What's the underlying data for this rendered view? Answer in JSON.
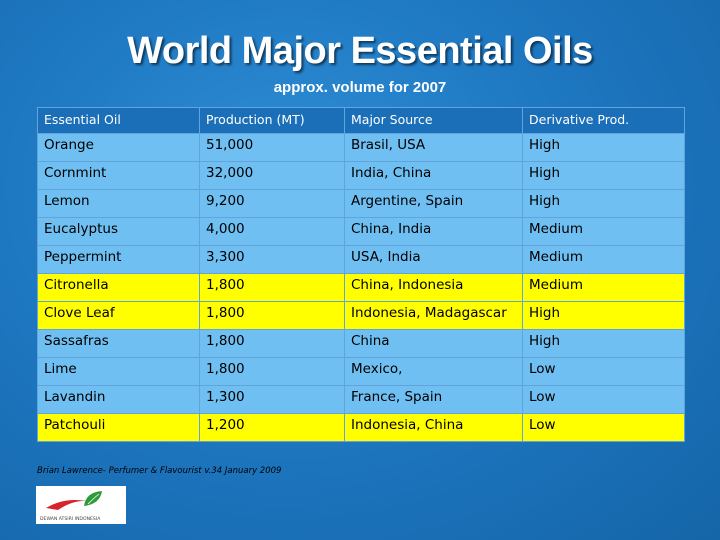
{
  "title": "World Major Essential Oils",
  "subtitle": "approx. volume for 2007",
  "table": {
    "headers": [
      "Essential Oil",
      "Production (MT)",
      "Major Source",
      "Derivative Prod."
    ],
    "rows": [
      {
        "oil": "Orange",
        "production": "51,000",
        "source": "Brasil, USA",
        "derivative": "High",
        "highlight": "blue"
      },
      {
        "oil": "Cornmint",
        "production": "32,000",
        "source": "India, China",
        "derivative": "High",
        "highlight": "blue"
      },
      {
        "oil": "Lemon",
        "production": "9,200",
        "source": "Argentine, Spain",
        "derivative": "High",
        "highlight": "blue"
      },
      {
        "oil": "Eucalyptus",
        "production": "4,000",
        "source": "China, India",
        "derivative": "Medium",
        "highlight": "blue"
      },
      {
        "oil": "Peppermint",
        "production": "3,300",
        "source": "USA, India",
        "derivative": "Medium",
        "highlight": "blue"
      },
      {
        "oil": "Citronella",
        "production": "1,800",
        "source": "China, Indonesia",
        "derivative": "Medium",
        "highlight": "yellow"
      },
      {
        "oil": "Clove Leaf",
        "production": "1,800",
        "source": "Indonesia, Madagascar",
        "derivative": "High",
        "highlight": "yellow"
      },
      {
        "oil": "Sassafras",
        "production": "1,800",
        "source": "China",
        "derivative": "High",
        "highlight": "blue"
      },
      {
        "oil": "Lime",
        "production": "1,800",
        "source": "Mexico,",
        "derivative": "Low",
        "highlight": "blue"
      },
      {
        "oil": "Lavandin",
        "production": "1,300",
        "source": "France, Spain",
        "derivative": "Low",
        "highlight": "blue"
      },
      {
        "oil": "Patchouli",
        "production": "1,200",
        "source": "Indonesia, China",
        "derivative": "Low",
        "highlight": "yellow"
      }
    ]
  },
  "credit": "Brian Lawrence- Perfumer & Flavourist v.34 January 2009",
  "logo": {
    "text": "DEWAN ATSIRI INDONESIA",
    "colors": {
      "leaf": "#2e9a3a",
      "swoosh": "#d8232a"
    }
  },
  "colors": {
    "background": "#1e78c2",
    "header": "#1a6fb8",
    "row_blue": "#6fbff2",
    "row_yellow": "#ffff00"
  }
}
